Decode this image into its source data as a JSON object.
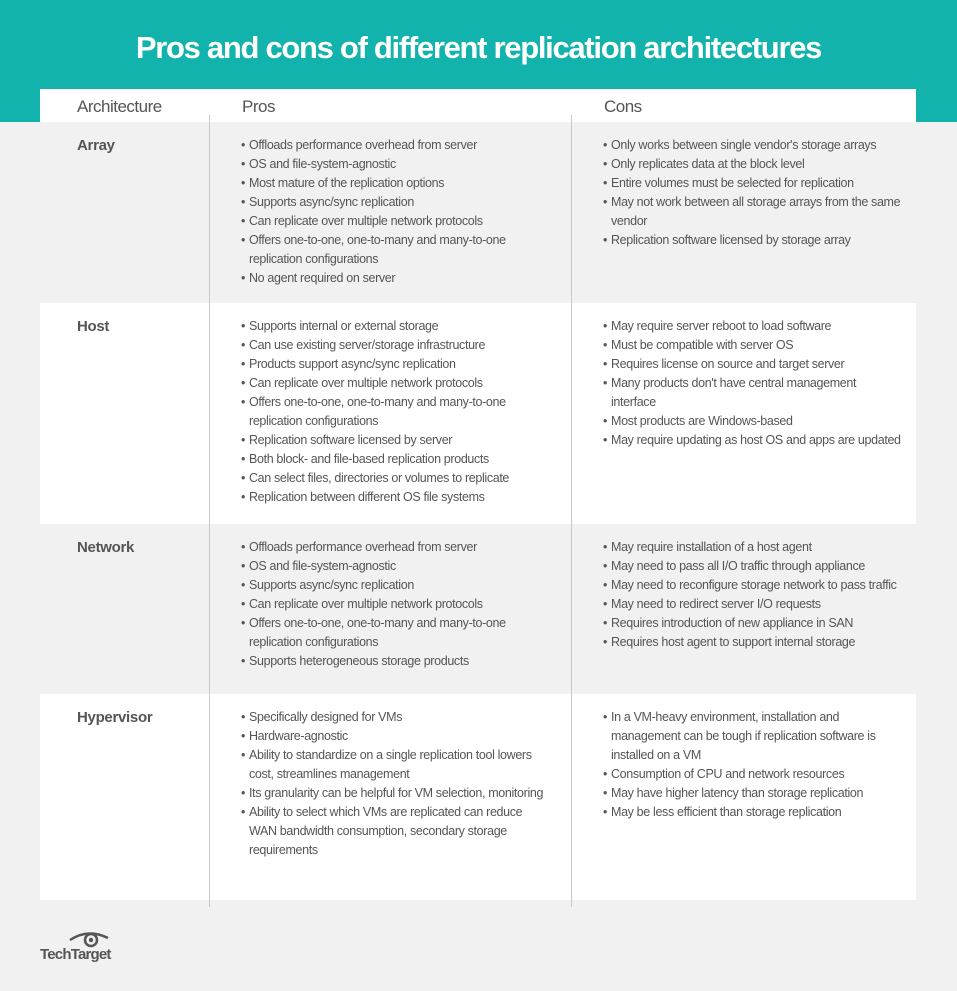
{
  "title": "Pros and cons of different replication architectures",
  "headers": {
    "architecture": "Architecture",
    "pros": "Pros",
    "cons": "Cons"
  },
  "colors": {
    "banner": "#12b3ac",
    "text": "#555555",
    "background": "#f1f1f1",
    "row_alt": "#ffffff"
  },
  "rows": [
    {
      "architecture": "Array",
      "pros": [
        "Offloads performance overhead from server",
        "OS and file-system-agnostic",
        "Most mature of the replication options",
        "Supports async/sync replication",
        "Can replicate over multiple network protocols",
        "Offers one-to-one, one-to-many and many-to-one replication configurations",
        "No agent required on server"
      ],
      "cons": [
        "Only works between single vendor's storage arrays",
        "Only replicates data at the block level",
        "Entire volumes must be selected for replication",
        "May not work between all storage arrays from the same vendor",
        "Replication software licensed by storage array"
      ]
    },
    {
      "architecture": "Host",
      "pros": [
        "Supports internal or external storage",
        "Can use existing server/storage infrastructure",
        "Products support async/sync replication",
        "Can replicate over multiple network protocols",
        "Offers one-to-one, one-to-many and many-to-one replication configurations",
        "Replication software licensed by server",
        "Both block- and file-based replication products",
        "Can select files, directories or volumes to replicate",
        "Replication between different OS file systems"
      ],
      "cons": [
        "May require server reboot to load software",
        "Must be compatible with server OS",
        "Requires license on source and target server",
        "Many products don't have central management interface",
        "Most products are Windows-based",
        "May require updating as host OS and apps are updated"
      ]
    },
    {
      "architecture": "Network",
      "pros": [
        "Offloads performance overhead from server",
        "OS and file-system-agnostic",
        "Supports async/sync replication",
        "Can replicate over multiple network protocols",
        "Offers one-to-one, one-to-many and many-to-one replication configurations",
        "Supports heterogeneous storage products"
      ],
      "cons": [
        "May require installation of a host agent",
        "May need to pass all I/O traffic through appliance",
        "May need to reconfigure storage network to pass traffic",
        "May need to redirect server I/O requests",
        "Requires introduction of new appliance in SAN",
        "Requires host agent to support internal storage"
      ]
    },
    {
      "architecture": "Hypervisor",
      "pros": [
        "Specifically designed for VMs",
        "Hardware-agnostic",
        "Ability to standardize on a single replication tool lowers cost, streamlines management",
        "Its granularity can be helpful for VM selection, monitoring",
        "Ability to select which VMs are replicated can reduce WAN bandwidth consumption, secondary storage requirements"
      ],
      "cons": [
        "In a VM-heavy environment, installation and management can be tough if replication software is installed on a VM",
        "Consumption of CPU and network resources",
        "May have higher latency than storage replication",
        "May be less efficient than storage replication"
      ]
    }
  ],
  "logo": "TechTarget"
}
